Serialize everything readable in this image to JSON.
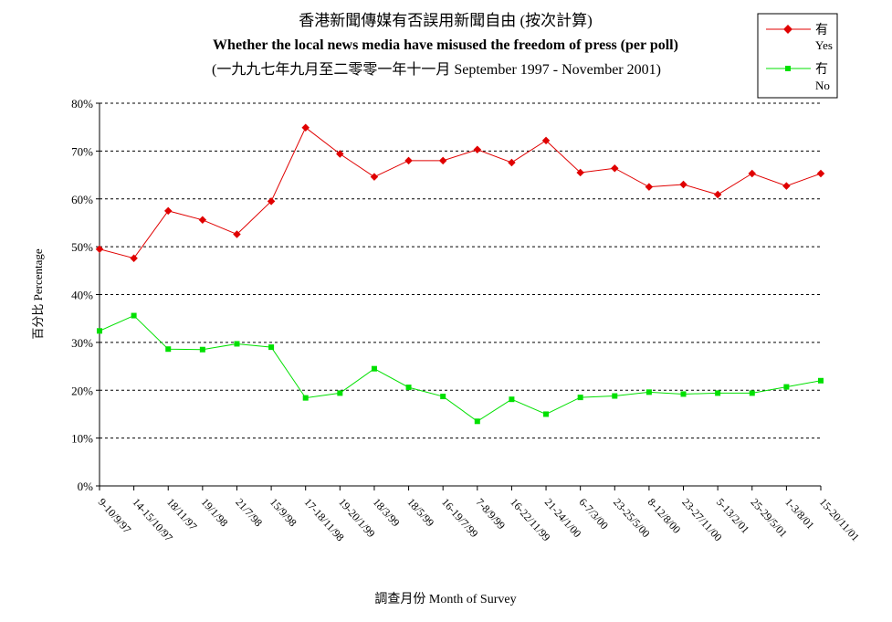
{
  "chart_data": {
    "type": "line",
    "title": "香港新聞傳媒有否誤用新聞自由 (按次計算)",
    "subtitle": "Whether the local news media have misused the freedom of press (per poll)",
    "subtitle2": "(一九九七年九月至二零零一年十一月 September 1997 - November 2001)",
    "xlabel": "調查月份 Month of Survey",
    "ylabel": "百分比 Percentage",
    "ylim": [
      0,
      80
    ],
    "yticks": [
      "0%",
      "10%",
      "20%",
      "30%",
      "40%",
      "50%",
      "60%",
      "70%",
      "80%"
    ],
    "grid": true,
    "legend_position": "top-right",
    "categories": [
      "9-10/9/97",
      "14-15/10/97",
      "18/11/97",
      "19/1/98",
      "21/7/98",
      "15/9/98",
      "17-18/11/98",
      "19-20/1/99",
      "18/3/99",
      "18/5/99",
      "16-19/7/99",
      "7-8/9/99",
      "16-22/11/99",
      "21-24/1/00",
      "6-7/3/00",
      "23-25/5/00",
      "8-12/8/00",
      "23-27/11/00",
      "5-13/2/01",
      "25-29/5/01",
      "1-3/8/01",
      "15-20/11/01"
    ],
    "series": [
      {
        "name": "有",
        "name_en": "Yes",
        "color": "#e00000",
        "marker": "diamond",
        "values": [
          49.5,
          47.6,
          57.5,
          55.6,
          52.6,
          59.5,
          74.9,
          69.4,
          64.6,
          68.0,
          68.0,
          70.3,
          67.6,
          72.2,
          65.5,
          66.4,
          62.5,
          63.0,
          60.9,
          65.3,
          62.7,
          65.3
        ]
      },
      {
        "name": "冇",
        "name_en": "No",
        "color": "#00e000",
        "marker": "square",
        "values": [
          32.4,
          35.6,
          28.6,
          28.5,
          29.7,
          29.0,
          18.4,
          19.4,
          24.5,
          20.6,
          18.7,
          13.5,
          18.1,
          15.0,
          18.5,
          18.8,
          19.6,
          19.2,
          19.4,
          19.4,
          20.7,
          22.0
        ]
      }
    ]
  }
}
